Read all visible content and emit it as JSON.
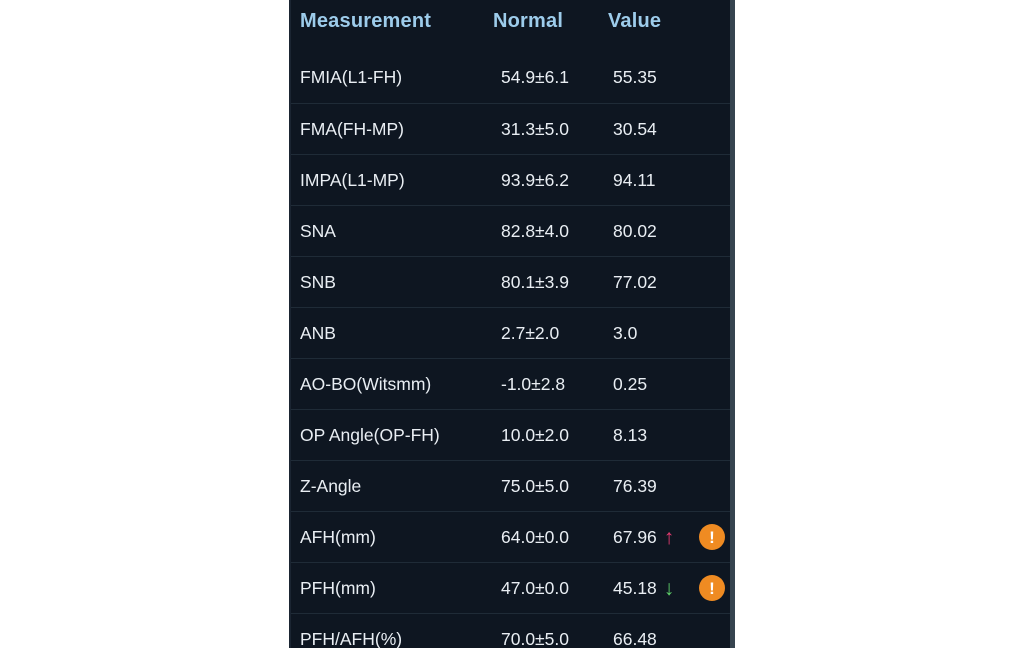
{
  "table": {
    "headers": {
      "measurement": "Measurement",
      "normal": "Normal",
      "value": "Value"
    },
    "rows": [
      {
        "measurement": "FMIA(L1-FH)",
        "normal": "54.9±6.1",
        "value": "55.35",
        "trend": null,
        "warning": false
      },
      {
        "measurement": "FMA(FH-MP)",
        "normal": "31.3±5.0",
        "value": "30.54",
        "trend": null,
        "warning": false
      },
      {
        "measurement": "IMPA(L1-MP)",
        "normal": "93.9±6.2",
        "value": "94.11",
        "trend": null,
        "warning": false
      },
      {
        "measurement": "SNA",
        "normal": "82.8±4.0",
        "value": "80.02",
        "trend": null,
        "warning": false
      },
      {
        "measurement": "SNB",
        "normal": "80.1±3.9",
        "value": "77.02",
        "trend": null,
        "warning": false
      },
      {
        "measurement": "ANB",
        "normal": "2.7±2.0",
        "value": "3.0",
        "trend": null,
        "warning": false
      },
      {
        "measurement": "AO-BO(Witsmm)",
        "normal": "-1.0±2.8",
        "value": "0.25",
        "trend": null,
        "warning": false
      },
      {
        "measurement": "OP Angle(OP-FH)",
        "normal": "10.0±2.0",
        "value": "8.13",
        "trend": null,
        "warning": false
      },
      {
        "measurement": "Z-Angle",
        "normal": "75.0±5.0",
        "value": "76.39",
        "trend": null,
        "warning": false
      },
      {
        "measurement": "AFH(mm)",
        "normal": "64.0±0.0",
        "value": "67.96",
        "trend": "up",
        "warning": true
      },
      {
        "measurement": "PFH(mm)",
        "normal": "47.0±0.0",
        "value": "45.18",
        "trend": "down",
        "warning": true
      },
      {
        "measurement": "PFH/AFH(%)",
        "normal": "70.0±5.0",
        "value": "66.48",
        "trend": null,
        "warning": false
      }
    ]
  },
  "icons": {
    "trend_up": "↑",
    "trend_down": "↓",
    "warning": "!"
  },
  "colors": {
    "page_background": "#ffffff",
    "panel_background": "#0e1621",
    "header_text": "#9dcceb",
    "body_text": "#e9eef3",
    "divider": "#1f2b37",
    "trend_up": "#e13a6f",
    "trend_down": "#5ecf69",
    "warning_badge": "#ef8b22",
    "warning_glyph": "#ffffff",
    "scrollbar": "#36444f"
  }
}
